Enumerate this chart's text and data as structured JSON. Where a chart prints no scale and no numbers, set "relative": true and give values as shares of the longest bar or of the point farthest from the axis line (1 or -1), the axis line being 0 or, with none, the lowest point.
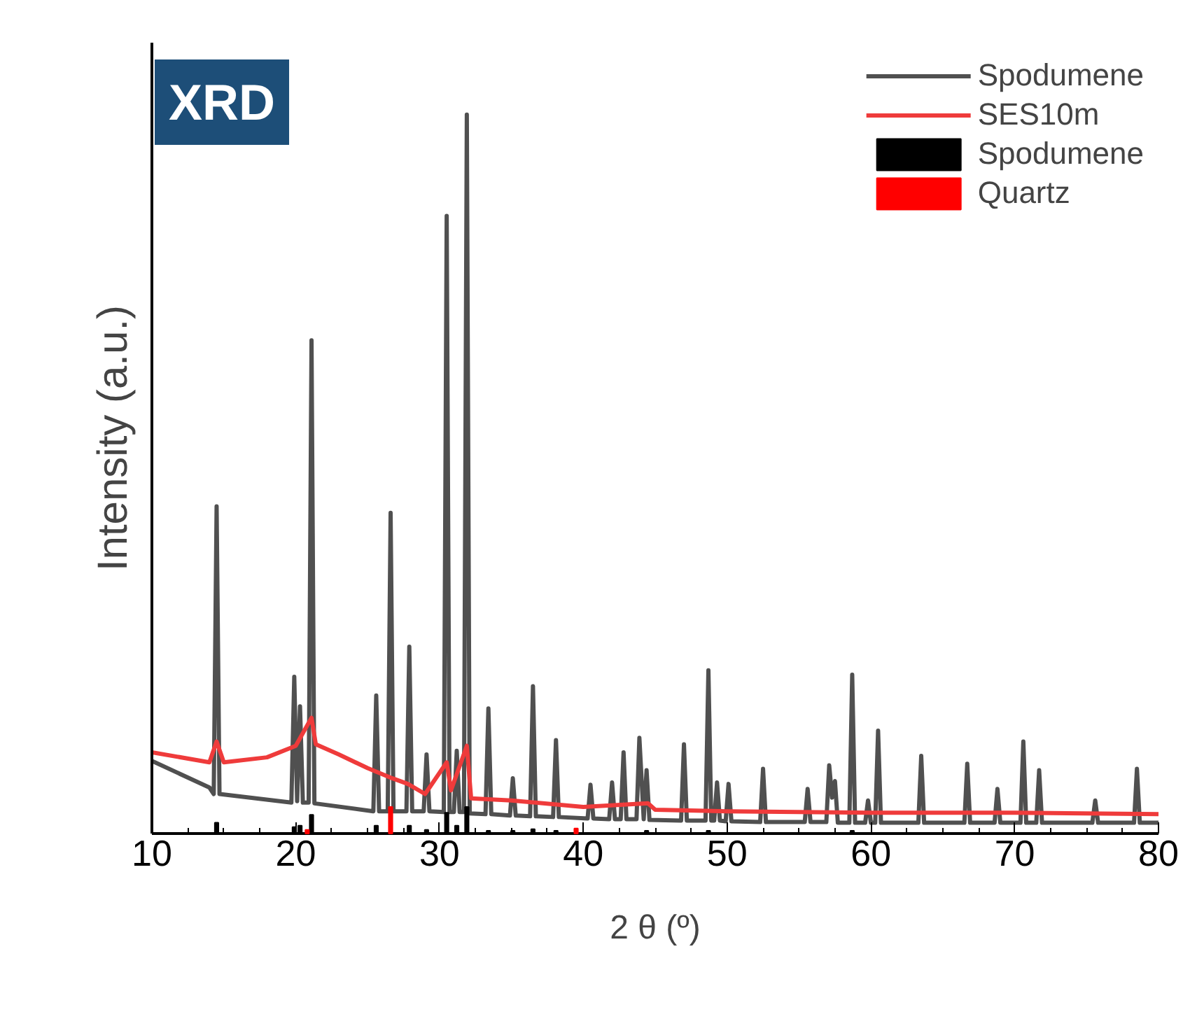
{
  "chart_data": {
    "type": "line",
    "title": "XRD",
    "xlabel": "2 θ (º)",
    "ylabel": "Intensity (a.u.)",
    "relative": true,
    "xlim": [
      10,
      80
    ],
    "xticks": [
      10,
      20,
      30,
      40,
      50,
      60,
      70,
      80
    ],
    "legend": "top right",
    "grid": false,
    "series": [
      {
        "name": "Spodumene",
        "color": "#505050",
        "x": [
          10,
          14,
          14.3,
          14.5,
          14.7,
          19.7,
          19.9,
          20.1,
          20.3,
          20.5,
          20.9,
          21.1,
          21.3,
          25.4,
          25.6,
          25.8,
          26.4,
          26.6,
          26.8,
          27.7,
          27.9,
          28.1,
          28.9,
          29.1,
          29.3,
          30.3,
          30.5,
          30.7,
          31.0,
          31.2,
          31.4,
          31.7,
          31.9,
          32.1,
          33.2,
          33.4,
          33.6,
          34.9,
          35.1,
          35.3,
          36.3,
          36.5,
          36.7,
          37.9,
          38.1,
          38.3,
          40.3,
          40.5,
          40.7,
          41.8,
          42.0,
          42.2,
          42.6,
          42.8,
          43.0,
          43.7,
          43.9,
          44.2,
          44.4,
          44.6,
          46.8,
          47.0,
          47.2,
          48.5,
          48.7,
          48.9,
          49.1,
          49.3,
          49.5,
          49.9,
          50.1,
          50.3,
          52.3,
          52.5,
          52.7,
          55.4,
          55.6,
          55.8,
          56.9,
          57.1,
          57.3,
          57.5,
          57.7,
          58.5,
          58.7,
          58.9,
          59.6,
          59.8,
          60.0,
          60.3,
          60.5,
          60.7,
          63.3,
          63.5,
          63.7,
          66.5,
          66.7,
          66.9,
          68.6,
          68.8,
          69.0,
          70.4,
          70.6,
          70.8,
          71.5,
          71.7,
          71.9,
          75.4,
          75.6,
          75.8,
          78.3,
          78.5,
          78.7,
          80
        ],
        "values": [
          0.101,
          0.064,
          0.055,
          0.455,
          0.055,
          0.043,
          0.218,
          0.045,
          0.177,
          0.043,
          0.043,
          0.686,
          0.042,
          0.031,
          0.192,
          0.031,
          0.031,
          0.446,
          0.031,
          0.031,
          0.26,
          0.031,
          0.031,
          0.11,
          0.031,
          0.03,
          0.859,
          0.03,
          0.03,
          0.115,
          0.03,
          0.03,
          1.0,
          0.028,
          0.027,
          0.174,
          0.027,
          0.025,
          0.077,
          0.025,
          0.024,
          0.205,
          0.024,
          0.023,
          0.13,
          0.023,
          0.021,
          0.068,
          0.021,
          0.02,
          0.071,
          0.02,
          0.02,
          0.113,
          0.02,
          0.02,
          0.133,
          0.02,
          0.088,
          0.019,
          0.018,
          0.124,
          0.018,
          0.018,
          0.227,
          0.018,
          0.018,
          0.071,
          0.018,
          0.017,
          0.069,
          0.017,
          0.016,
          0.09,
          0.016,
          0.016,
          0.062,
          0.016,
          0.016,
          0.095,
          0.05,
          0.073,
          0.015,
          0.015,
          0.221,
          0.015,
          0.015,
          0.046,
          0.015,
          0.015,
          0.143,
          0.015,
          0.015,
          0.108,
          0.015,
          0.015,
          0.097,
          0.015,
          0.015,
          0.062,
          0.015,
          0.015,
          0.128,
          0.015,
          0.015,
          0.088,
          0.015,
          0.015,
          0.046,
          0.015,
          0.015,
          0.09,
          0.015,
          0.015
        ]
      },
      {
        "name": "SES10m",
        "color": "#ef3b3b",
        "x": [
          10,
          14,
          14.5,
          15,
          18,
          20,
          21.1,
          21.4,
          23,
          25,
          26.7,
          27.8,
          29,
          30.5,
          30.8,
          31.9,
          32.2,
          35,
          40,
          44.5,
          45,
          50,
          60,
          70,
          80
        ],
        "values": [
          0.113,
          0.099,
          0.128,
          0.099,
          0.106,
          0.122,
          0.161,
          0.124,
          0.11,
          0.091,
          0.077,
          0.069,
          0.055,
          0.099,
          0.06,
          0.122,
          0.049,
          0.046,
          0.037,
          0.042,
          0.033,
          0.031,
          0.029,
          0.029,
          0.027
        ]
      },
      {
        "name": "Spodumene",
        "type": "bar",
        "color": "#000000",
        "x": [
          14.5,
          19.9,
          20.3,
          21.1,
          25.6,
          27.9,
          29.1,
          30.5,
          31.2,
          31.9,
          33.4,
          35.1,
          36.5,
          38.1,
          44.4,
          48.7,
          58.7
        ],
        "values": [
          0.015,
          0.009,
          0.011,
          0.026,
          0.011,
          0.011,
          0.005,
          0.029,
          0.011,
          0.037,
          0.004,
          0.004,
          0.006,
          0.004,
          0.004,
          0.004,
          0.004
        ]
      },
      {
        "name": "Quartz",
        "type": "bar",
        "color": "#ff0000",
        "x": [
          20.8,
          26.6,
          39.5
        ],
        "values": [
          0.005,
          0.037,
          0.007
        ]
      }
    ]
  }
}
